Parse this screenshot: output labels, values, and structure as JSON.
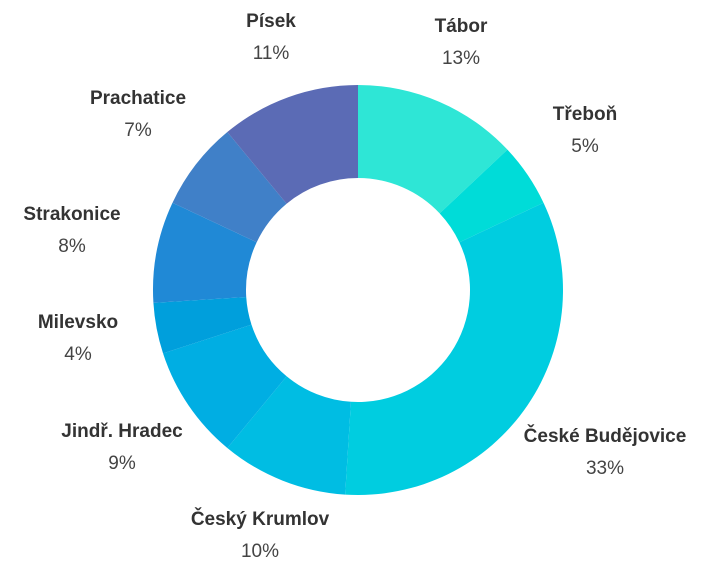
{
  "chart_data": {
    "type": "donut",
    "categories": [
      "Tábor",
      "Třeboň",
      "České Budějovice",
      "Český Krumlov",
      "Jindř. Hradec",
      "Milevsko",
      "Strakonice",
      "Prachatice",
      "Písek"
    ],
    "values": [
      13,
      5,
      33,
      10,
      9,
      4,
      8,
      7,
      11
    ],
    "value_labels": [
      "13%",
      "5%",
      "33%",
      "10%",
      "9%",
      "4%",
      "8%",
      "7%",
      "11%"
    ],
    "colors": [
      "#2ee6d6",
      "#00dcd8",
      "#00cde0",
      "#00bde3",
      "#00aee3",
      "#009fdc",
      "#2089d6",
      "#4080c8",
      "#5b6bb5"
    ]
  }
}
